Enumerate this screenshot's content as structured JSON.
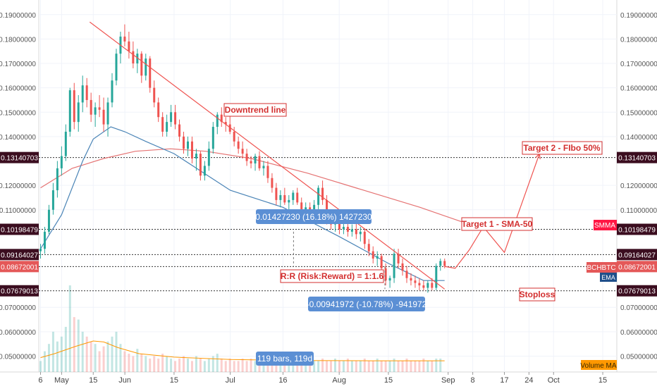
{
  "chart_data": {
    "type": "candlestick",
    "symbol_tag": "BCHBTC",
    "y_range": [
      0.0435,
      0.196
    ],
    "x_range_label": "May–Oct",
    "y_ticks": [
      "0.19000000",
      "0.18000000",
      "0.17000000",
      "0.16000000",
      "0.15000000",
      "0.14000000",
      "0.12000000",
      "0.11000000",
      "0.07000000",
      "0.06000000",
      "0.05000000"
    ],
    "y_tick_values": [
      0.19,
      0.18,
      0.17,
      0.16,
      0.15,
      0.14,
      0.12,
      0.11,
      0.07,
      0.06,
      0.05
    ],
    "x_ticks": [
      {
        "label": "6",
        "day": 6
      },
      {
        "label": "May",
        "day": 12
      },
      {
        "label": "15",
        "day": 21
      },
      {
        "label": "Jun",
        "day": 30
      },
      {
        "label": "15",
        "day": 44
      },
      {
        "label": "Jul",
        "day": 60
      },
      {
        "label": "16",
        "day": 75
      },
      {
        "label": "Aug",
        "day": 91
      },
      {
        "label": "15",
        "day": 105
      },
      {
        "label": "Sep",
        "day": 122
      },
      {
        "label": "8",
        "day": 129
      },
      {
        "label": "17",
        "day": 138
      },
      {
        "label": "24",
        "day": 145
      },
      {
        "label": "Oct",
        "day": 152
      },
      {
        "label": "15",
        "day": 166
      }
    ],
    "price_levels": [
      {
        "label": "0.13140703",
        "value": 0.13140703,
        "color": "#3b0d1f"
      },
      {
        "label": "0.10198479",
        "value": 0.10198479,
        "color": "#3b0d1f"
      },
      {
        "label": "0.09164027",
        "value": 0.09164027,
        "color": "#3b0d1f"
      },
      {
        "label": "0.08672001",
        "value": 0.08672001,
        "color": "#e45858"
      },
      {
        "label": "0.07679013",
        "value": 0.07679013,
        "color": "#3b0d1f"
      }
    ],
    "ohlc_series": [
      [
        0.093,
        0.096,
        0.09,
        0.094
      ],
      [
        0.094,
        0.103,
        0.092,
        0.101
      ],
      [
        0.101,
        0.112,
        0.1,
        0.11
      ],
      [
        0.11,
        0.121,
        0.108,
        0.118
      ],
      [
        0.118,
        0.13,
        0.115,
        0.127
      ],
      [
        0.127,
        0.136,
        0.124,
        0.132
      ],
      [
        0.132,
        0.145,
        0.13,
        0.142
      ],
      [
        0.142,
        0.16,
        0.14,
        0.159
      ],
      [
        0.159,
        0.162,
        0.143,
        0.146
      ],
      [
        0.146,
        0.157,
        0.142,
        0.154
      ],
      [
        0.154,
        0.165,
        0.15,
        0.161
      ],
      [
        0.161,
        0.164,
        0.152,
        0.155
      ],
      [
        0.155,
        0.158,
        0.146,
        0.149
      ],
      [
        0.149,
        0.154,
        0.144,
        0.152
      ],
      [
        0.152,
        0.157,
        0.148,
        0.151
      ],
      [
        0.151,
        0.156,
        0.142,
        0.145
      ],
      [
        0.145,
        0.156,
        0.14,
        0.154
      ],
      [
        0.154,
        0.166,
        0.152,
        0.163
      ],
      [
        0.163,
        0.176,
        0.161,
        0.174
      ],
      [
        0.174,
        0.183,
        0.17,
        0.181
      ],
      [
        0.181,
        0.186,
        0.177,
        0.179
      ],
      [
        0.179,
        0.183,
        0.172,
        0.175
      ],
      [
        0.175,
        0.179,
        0.168,
        0.17
      ],
      [
        0.17,
        0.176,
        0.166,
        0.174
      ],
      [
        0.174,
        0.175,
        0.162,
        0.165
      ],
      [
        0.165,
        0.174,
        0.163,
        0.172
      ],
      [
        0.172,
        0.173,
        0.158,
        0.16
      ],
      [
        0.16,
        0.163,
        0.152,
        0.154
      ],
      [
        0.154,
        0.156,
        0.146,
        0.148
      ],
      [
        0.148,
        0.15,
        0.14,
        0.142
      ],
      [
        0.142,
        0.149,
        0.14,
        0.146
      ],
      [
        0.146,
        0.153,
        0.144,
        0.15
      ],
      [
        0.15,
        0.153,
        0.143,
        0.145
      ],
      [
        0.145,
        0.147,
        0.138,
        0.14
      ],
      [
        0.14,
        0.142,
        0.133,
        0.135
      ],
      [
        0.135,
        0.14,
        0.132,
        0.138
      ],
      [
        0.138,
        0.14,
        0.129,
        0.131
      ],
      [
        0.131,
        0.135,
        0.126,
        0.133
      ],
      [
        0.133,
        0.134,
        0.122,
        0.124
      ],
      [
        0.124,
        0.13,
        0.122,
        0.128
      ],
      [
        0.128,
        0.138,
        0.126,
        0.135
      ],
      [
        0.135,
        0.146,
        0.133,
        0.144
      ],
      [
        0.144,
        0.15,
        0.141,
        0.149
      ],
      [
        0.149,
        0.152,
        0.144,
        0.146
      ],
      [
        0.146,
        0.148,
        0.142,
        0.145
      ],
      [
        0.145,
        0.149,
        0.141,
        0.142
      ],
      [
        0.142,
        0.144,
        0.136,
        0.138
      ],
      [
        0.138,
        0.14,
        0.133,
        0.135
      ],
      [
        0.135,
        0.138,
        0.131,
        0.133
      ],
      [
        0.133,
        0.135,
        0.128,
        0.13
      ],
      [
        0.13,
        0.132,
        0.127,
        0.129
      ],
      [
        0.129,
        0.133,
        0.126,
        0.132
      ],
      [
        0.132,
        0.134,
        0.126,
        0.127
      ],
      [
        0.127,
        0.13,
        0.124,
        0.128
      ],
      [
        0.128,
        0.13,
        0.121,
        0.123
      ],
      [
        0.123,
        0.125,
        0.117,
        0.119
      ],
      [
        0.119,
        0.121,
        0.112,
        0.114
      ],
      [
        0.114,
        0.118,
        0.111,
        0.116
      ],
      [
        0.116,
        0.119,
        0.112,
        0.113
      ],
      [
        0.113,
        0.116,
        0.11,
        0.114
      ],
      [
        0.114,
        0.118,
        0.112,
        0.117
      ],
      [
        0.117,
        0.119,
        0.112,
        0.113
      ],
      [
        0.113,
        0.115,
        0.108,
        0.11
      ],
      [
        0.11,
        0.113,
        0.107,
        0.111
      ],
      [
        0.111,
        0.113,
        0.106,
        0.108
      ],
      [
        0.108,
        0.114,
        0.106,
        0.112
      ],
      [
        0.112,
        0.12,
        0.11,
        0.119
      ],
      [
        0.119,
        0.122,
        0.112,
        0.114
      ],
      [
        0.114,
        0.116,
        0.104,
        0.106
      ],
      [
        0.106,
        0.109,
        0.102,
        0.104
      ],
      [
        0.104,
        0.107,
        0.101,
        0.105
      ],
      [
        0.105,
        0.106,
        0.1,
        0.102
      ],
      [
        0.102,
        0.105,
        0.1,
        0.103
      ],
      [
        0.103,
        0.105,
        0.099,
        0.101
      ],
      [
        0.101,
        0.104,
        0.099,
        0.102
      ],
      [
        0.102,
        0.105,
        0.098,
        0.1
      ],
      [
        0.1,
        0.103,
        0.097,
        0.101
      ],
      [
        0.101,
        0.102,
        0.094,
        0.096
      ],
      [
        0.096,
        0.098,
        0.091,
        0.093
      ],
      [
        0.093,
        0.095,
        0.088,
        0.09
      ],
      [
        0.09,
        0.093,
        0.087,
        0.091
      ],
      [
        0.091,
        0.092,
        0.084,
        0.086
      ],
      [
        0.086,
        0.088,
        0.079,
        0.081
      ],
      [
        0.081,
        0.083,
        0.078,
        0.082
      ],
      [
        0.082,
        0.094,
        0.08,
        0.092
      ],
      [
        0.092,
        0.094,
        0.086,
        0.088
      ],
      [
        0.088,
        0.09,
        0.083,
        0.085
      ],
      [
        0.085,
        0.087,
        0.08,
        0.082
      ],
      [
        0.082,
        0.084,
        0.079,
        0.081
      ],
      [
        0.081,
        0.083,
        0.078,
        0.08
      ],
      [
        0.08,
        0.082,
        0.077,
        0.079
      ],
      [
        0.079,
        0.081,
        0.077,
        0.078
      ],
      [
        0.078,
        0.081,
        0.076,
        0.08
      ],
      [
        0.08,
        0.082,
        0.077,
        0.078
      ],
      [
        0.078,
        0.088,
        0.077,
        0.087
      ],
      [
        0.087,
        0.09,
        0.085,
        0.089
      ],
      [
        0.089,
        0.09,
        0.086,
        0.087
      ]
    ],
    "volume_series": [
      0.048,
      0.052,
      0.055,
      0.06,
      0.056,
      0.058,
      0.062,
      0.079,
      0.066,
      0.065,
      0.06,
      0.058,
      0.056,
      0.055,
      0.052,
      0.054,
      0.056,
      0.058,
      0.06,
      0.055,
      0.052,
      0.051,
      0.05,
      0.053,
      0.051,
      0.05,
      0.049,
      0.05,
      0.049,
      0.051,
      0.05,
      0.049,
      0.048,
      0.049,
      0.05,
      0.049,
      0.048,
      0.05,
      0.049,
      0.048,
      0.049,
      0.05,
      0.051,
      0.049,
      0.048,
      0.049,
      0.048,
      0.048,
      0.049,
      0.048,
      0.049,
      0.048,
      0.048,
      0.049,
      0.048,
      0.048,
      0.049,
      0.048,
      0.048,
      0.049,
      0.048,
      0.048,
      0.049,
      0.048,
      0.049,
      0.048,
      0.048,
      0.049,
      0.048,
      0.048,
      0.049,
      0.048,
      0.048,
      0.049,
      0.048,
      0.048,
      0.048,
      0.049,
      0.048,
      0.048,
      0.049,
      0.048,
      0.048,
      0.048,
      0.049,
      0.048,
      0.048,
      0.049,
      0.048,
      0.048,
      0.048,
      0.049,
      0.048,
      0.048,
      0.049,
      0.049
    ],
    "sma_points": [
      [
        6,
        0.094
      ],
      [
        12,
        0.108
      ],
      [
        18,
        0.13
      ],
      [
        21,
        0.139
      ],
      [
        26,
        0.144
      ],
      [
        30,
        0.142
      ],
      [
        36,
        0.138
      ],
      [
        44,
        0.133
      ],
      [
        60,
        0.118
      ],
      [
        75,
        0.111
      ],
      [
        91,
        0.099
      ],
      [
        105,
        0.088
      ],
      [
        115,
        0.081
      ],
      [
        121,
        0.081
      ]
    ],
    "smma_points": [
      [
        6,
        0.119
      ],
      [
        15,
        0.127
      ],
      [
        24,
        0.131
      ],
      [
        33,
        0.134
      ],
      [
        43,
        0.135
      ],
      [
        53,
        0.134
      ],
      [
        66,
        0.131
      ],
      [
        82,
        0.125
      ],
      [
        98,
        0.118
      ],
      [
        114,
        0.111
      ],
      [
        124,
        0.106
      ],
      [
        132,
        0.102
      ]
    ],
    "volume_ma_points": [
      [
        6,
        0.0494
      ],
      [
        10,
        0.051
      ],
      [
        16,
        0.054
      ],
      [
        21,
        0.0562
      ],
      [
        24,
        0.0558
      ],
      [
        28,
        0.0535
      ],
      [
        34,
        0.051
      ],
      [
        44,
        0.0496
      ],
      [
        60,
        0.0486
      ],
      [
        80,
        0.0482
      ],
      [
        100,
        0.0481
      ],
      [
        121,
        0.0481
      ]
    ],
    "downtrend_line": [
      [
        20,
        0.187
      ],
      [
        121,
        0.0775
      ]
    ],
    "forecast_path": [
      [
        121,
        0.0868
      ],
      [
        124,
        0.086
      ],
      [
        128,
        0.0935
      ],
      [
        132,
        0.103
      ],
      [
        138,
        0.0925
      ],
      [
        148,
        0.133
      ]
    ],
    "annotations": {
      "downtrend": "Downtrend line",
      "target2": "Target 2 - FIbo 50%",
      "target1": "Target 1 - SMA-50",
      "rr": "R:R (Risk:Reward) = 1:1.6",
      "stoploss": "Stoploss",
      "measure_up": "0.01427230 (16.18%) 1427230",
      "measure_down": "-0.00941972 (-10.78%) -941972",
      "bars": "119 bars, 119d",
      "smma_tag": "SMMA",
      "ema_tag": "EMA",
      "volume_ma": "Volume MA"
    },
    "colors": {
      "up": "#26a69a",
      "down": "#ef5350",
      "sma": "#4a84b6",
      "smma": "#e57373",
      "trend": "#ef5350",
      "annotation": "#d32f2f",
      "measure_box": "#5b8fd4"
    }
  }
}
